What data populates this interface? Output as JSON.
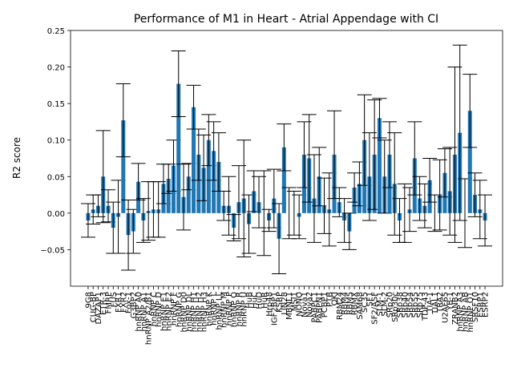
{
  "chart_data": {
    "type": "bar",
    "title": "Performance of M1 in Heart - Atrial Appendage with CI",
    "y_label": "R2 score",
    "color": "#1f77b4",
    "categories": [
      "9G8",
      "CUG-BP",
      "DAZAP1",
      "ETR-3",
      "FMRP",
      "FUS",
      "FXR1",
      "FXR2",
      "Fox-1",
      "G3BP2",
      "hnRNP A0",
      "hnRNP A1",
      "hnRNP A2/B1",
      "hnRNP C",
      "hnRNP D",
      "hnRNP E1",
      "hnRNP E2",
      "hnRNP F",
      "hnRNP G",
      "hnRNP D0",
      "hnRNP DL",
      "hnRNP H1",
      "hnRNP H2",
      "hnRNP H3",
      "hnRNP K",
      "hnRNP L",
      "hnRNP LL",
      "hnRNP M",
      "hnRNP P",
      "hnRNP Q",
      "hnRNP R",
      "hnRNP U",
      "HuB",
      "HuC",
      "HuD",
      "HuR",
      "Hrp48",
      "IGF2BP1",
      "KSRP",
      "LIN28",
      "MBNL1",
      "MSI1",
      "NONO",
      "Nova1",
      "Nova2",
      "PABPC1",
      "PABPN1",
      "PCBP1",
      "PTB",
      "QKI",
      "RBM24",
      "RBM4",
      "RBM5",
      "RBMX",
      "SAM68",
      "SC35",
      "SF1",
      "SF2/ASF",
      "SLM-1",
      "SLM-2",
      "SRp20",
      "SRp30c",
      "SRp38",
      "SRp40",
      "SRp54",
      "SRp55",
      "SRp75",
      "TDP-43",
      "TIA-1",
      "TIAL1",
      "TRA2",
      "U2AF65",
      "YB-1",
      "ZRANB2",
      "hnRNP A3",
      "hnRNP AB",
      "hnRNP Q1",
      "SRSF10",
      "ESRP1",
      "ESRP2"
    ],
    "values": [
      -0.01,
      0.005,
      0.01,
      0.05,
      0.01,
      -0.02,
      -0.005,
      0.127,
      -0.03,
      -0.025,
      0.043,
      -0.01,
      0.003,
      0.005,
      0.005,
      0.04,
      0.047,
      0.065,
      0.177,
      0.022,
      0.05,
      0.145,
      0.08,
      0.062,
      0.1,
      0.085,
      0.07,
      0.01,
      0.01,
      -0.02,
      0.015,
      0.02,
      -0.015,
      0.03,
      0.015,
      0.0,
      -0.01,
      0.02,
      -0.035,
      0.09,
      0.0,
      0.0,
      -0.005,
      0.08,
      0.075,
      0.02,
      0.05,
      0.01,
      0.005,
      0.08,
      0.015,
      -0.01,
      -0.025,
      0.035,
      0.04,
      0.1,
      0.05,
      0.08,
      0.13,
      0.05,
      0.08,
      0.04,
      -0.01,
      0.0,
      0.005,
      0.075,
      0.02,
      0.01,
      0.045,
      0.0,
      0.025,
      0.055,
      0.03,
      0.08,
      0.11,
      0.0,
      0.14,
      0.025,
      0.005,
      -0.01
    ],
    "errors": [
      0.023,
      0.02,
      0.015,
      0.063,
      0.022,
      0.035,
      0.05,
      0.05,
      0.048,
      0.03,
      0.025,
      0.03,
      0.04,
      0.038,
      0.038,
      0.027,
      0.02,
      0.035,
      0.045,
      0.045,
      0.018,
      0.03,
      0.035,
      0.045,
      0.035,
      0.04,
      0.04,
      0.02,
      0.04,
      0.018,
      0.05,
      0.08,
      0.04,
      0.028,
      0.035,
      0.058,
      0.015,
      0.04,
      0.048,
      0.032,
      0.035,
      0.03,
      0.03,
      0.045,
      0.06,
      0.06,
      0.04,
      0.038,
      0.05,
      0.06,
      0.02,
      0.03,
      0.025,
      0.02,
      0.03,
      0.062,
      0.06,
      0.075,
      0.027,
      0.05,
      0.045,
      0.07,
      0.03,
      0.04,
      0.03,
      0.05,
      0.03,
      0.03,
      0.03,
      0.025,
      0.048,
      0.033,
      0.06,
      0.12,
      0.12,
      0.047,
      0.05,
      0.03,
      0.04,
      0.035
    ],
    "ylim": [
      -0.1,
      0.25
    ],
    "yticks": [
      {
        "value": -0.05,
        "label": "−0.05"
      },
      {
        "value": 0,
        "label": "0.00"
      },
      {
        "value": 0.05,
        "label": "0.05"
      },
      {
        "value": 0.1,
        "label": "0.10"
      },
      {
        "value": 0.15,
        "label": "0.15"
      },
      {
        "value": 0.2,
        "label": "0.20"
      },
      {
        "value": 0.25,
        "label": "0.25"
      }
    ]
  }
}
